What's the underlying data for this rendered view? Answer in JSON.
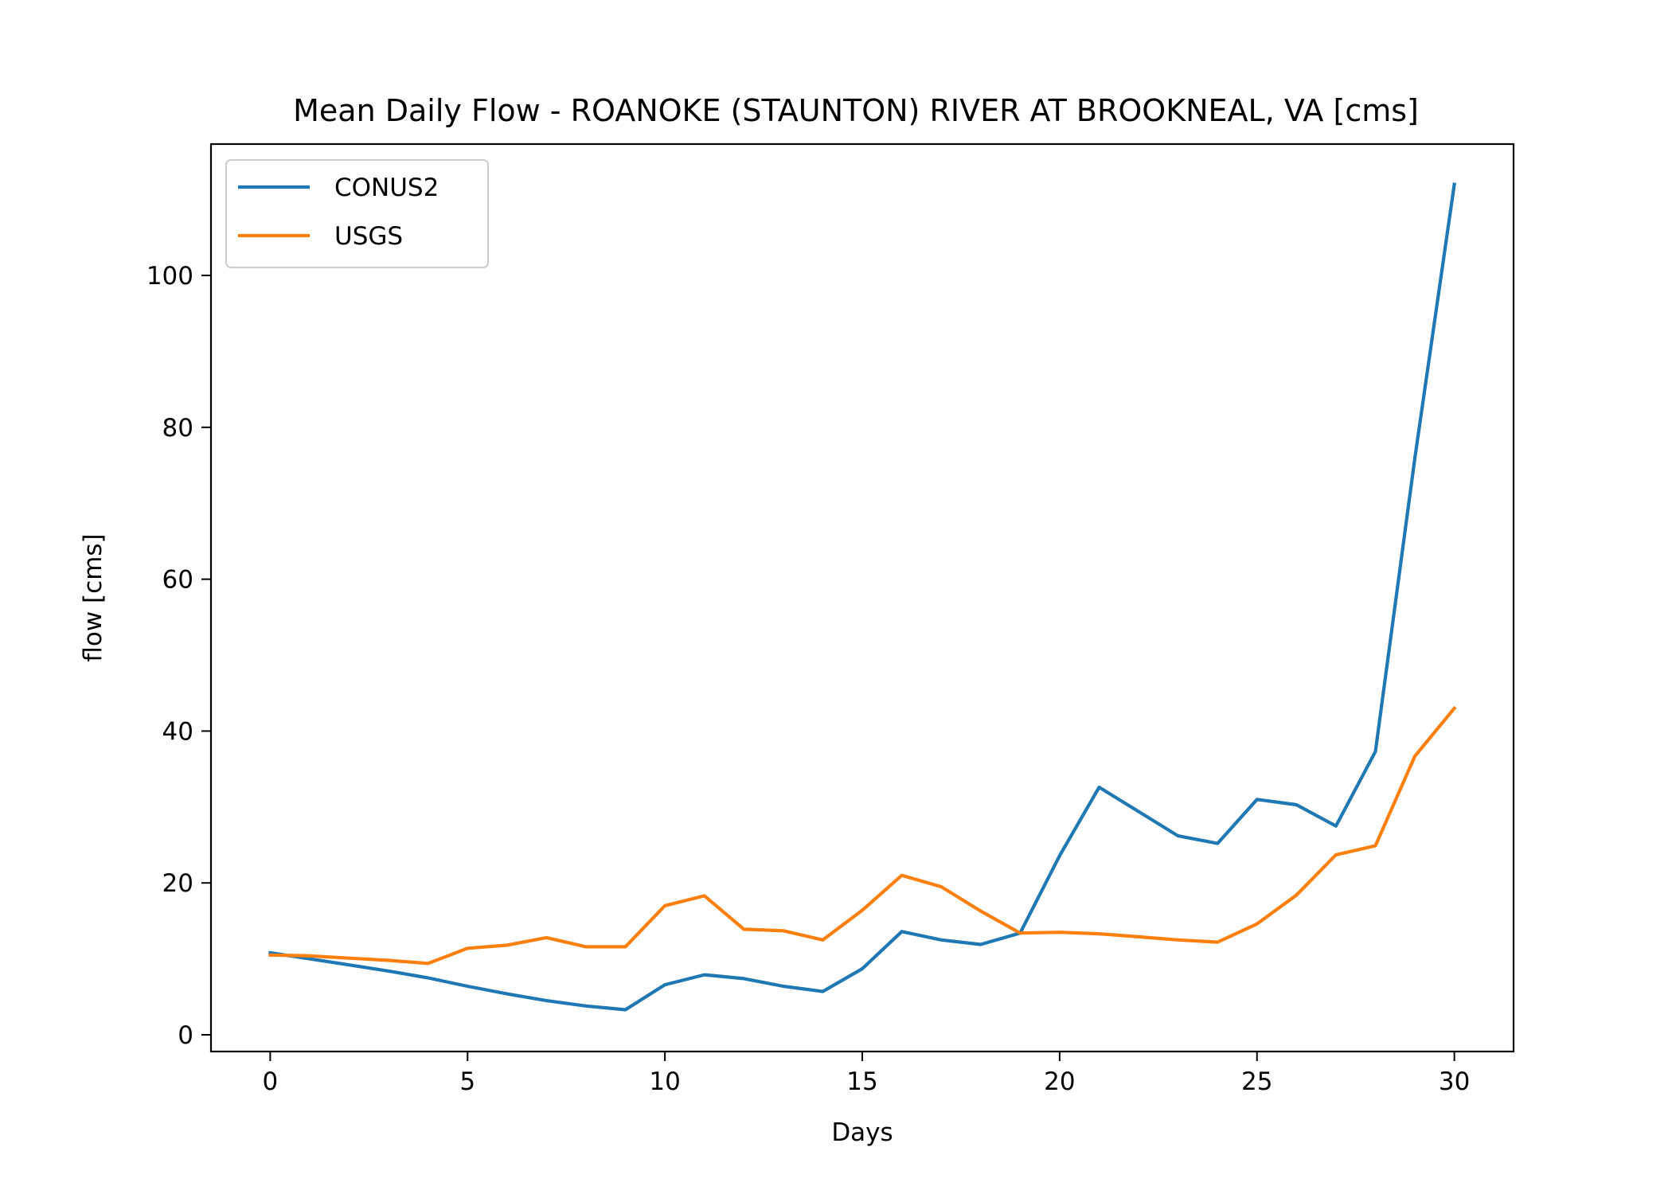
{
  "chart_data": {
    "type": "line",
    "title": "Mean Daily Flow - ROANOKE (STAUNTON) RIVER AT BROOKNEAL, VA [cms]",
    "xlabel": "Days",
    "ylabel": "flow [cms]",
    "xlim": [
      -1.5,
      31.5
    ],
    "ylim": [
      -2.2,
      117.3
    ],
    "xticks": [
      0,
      5,
      10,
      15,
      20,
      25,
      30
    ],
    "yticks": [
      0,
      20,
      40,
      60,
      80,
      100
    ],
    "grid": false,
    "legend_position": "upper-left",
    "x": [
      0,
      1,
      2,
      3,
      4,
      5,
      6,
      7,
      8,
      9,
      10,
      11,
      12,
      13,
      14,
      15,
      16,
      17,
      18,
      19,
      20,
      21,
      22,
      23,
      24,
      25,
      26,
      27,
      28,
      29,
      30
    ],
    "series": [
      {
        "name": "CONUS2",
        "color": "#1f77b4",
        "values": [
          10.8,
          10.0,
          9.2,
          8.4,
          7.5,
          6.4,
          5.4,
          4.5,
          3.8,
          3.3,
          6.6,
          7.9,
          7.4,
          6.4,
          5.7,
          8.7,
          13.6,
          12.5,
          11.9,
          13.4,
          23.6,
          32.6,
          29.4,
          26.2,
          25.2,
          31.0,
          30.3,
          27.5,
          37.3,
          76.0,
          112.0
        ]
      },
      {
        "name": "USGS",
        "color": "#ff7f0e",
        "values": [
          10.5,
          10.4,
          10.1,
          9.8,
          9.4,
          11.4,
          11.8,
          12.8,
          11.6,
          11.6,
          17.0,
          18.3,
          13.9,
          13.7,
          12.5,
          16.4,
          21.0,
          19.5,
          16.3,
          13.4,
          13.5,
          13.3,
          12.9,
          12.5,
          12.2,
          14.6,
          18.4,
          23.7,
          24.9,
          36.7,
          43.0
        ]
      }
    ]
  }
}
